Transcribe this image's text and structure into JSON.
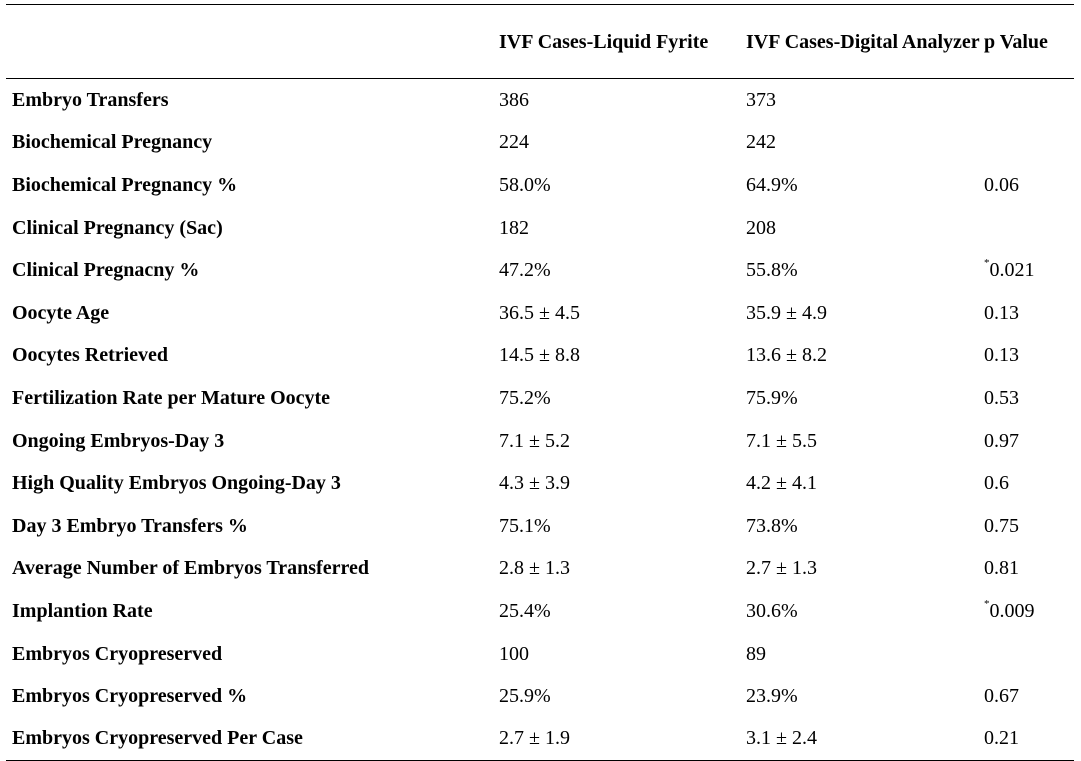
{
  "table": {
    "headers": [
      "",
      "IVF Cases-Liquid Fyrite",
      "IVF Cases-Digital Analyzer",
      "p Value"
    ],
    "rows": [
      {
        "label": "Embryo Transfers",
        "fyrite": "386",
        "digital": "373",
        "p_mark": "",
        "p": ""
      },
      {
        "label": "Biochemical Pregnancy",
        "fyrite": "224",
        "digital": "242",
        "p_mark": "",
        "p": ""
      },
      {
        "label": "Biochemical Pregnancy %",
        "fyrite": "58.0%",
        "digital": "64.9%",
        "p_mark": "",
        "p": "0.06"
      },
      {
        "label": "Clinical Pregnancy (Sac)",
        "fyrite": "182",
        "digital": "208",
        "p_mark": "",
        "p": ""
      },
      {
        "label": "Clinical Pregnacny %",
        "fyrite": "47.2%",
        "digital": "55.8%",
        "p_mark": "*",
        "p": "0.021"
      },
      {
        "label": "Oocyte Age",
        "fyrite": "36.5 ± 4.5",
        "digital": "35.9 ± 4.9",
        "p_mark": "",
        "p": "0.13"
      },
      {
        "label": "Oocytes Retrieved",
        "fyrite": "14.5 ± 8.8",
        "digital": "13.6 ± 8.2",
        "p_mark": "",
        "p": "0.13"
      },
      {
        "label": "Fertilization Rate per Mature Oocyte",
        "fyrite": "75.2%",
        "digital": "75.9%",
        "p_mark": "",
        "p": "0.53"
      },
      {
        "label": "Ongoing Embryos-Day 3",
        "fyrite": "7.1 ± 5.2",
        "digital": "7.1 ± 5.5",
        "p_mark": "",
        "p": "0.97"
      },
      {
        "label": "High Quality Embryos Ongoing-Day 3",
        "fyrite": "4.3 ± 3.9",
        "digital": "4.2 ± 4.1",
        "p_mark": "",
        "p": "0.6"
      },
      {
        "label": "Day 3 Embryo Transfers %",
        "fyrite": "75.1%",
        "digital": "73.8%",
        "p_mark": "",
        "p": "0.75"
      },
      {
        "label": "Average Number of Embryos Transferred",
        "fyrite": "2.8 ± 1.3",
        "digital": "2.7 ± 1.3",
        "p_mark": "",
        "p": "0.81"
      },
      {
        "label": "Implantion Rate",
        "fyrite": "25.4%",
        "digital": "30.6%",
        "p_mark": "*",
        "p": "0.009"
      },
      {
        "label": "Embryos Cryopreserved",
        "fyrite": "100",
        "digital": "89",
        "p_mark": "",
        "p": ""
      },
      {
        "label": "Embryos Cryopreserved %",
        "fyrite": "25.9%",
        "digital": "23.9%",
        "p_mark": "",
        "p": "0.67"
      },
      {
        "label": "Embryos Cryopreserved Per Case",
        "fyrite": "2.7 ± 1.9",
        "digital": "3.1 ± 2.4",
        "p_mark": "",
        "p": "0.21"
      }
    ]
  }
}
